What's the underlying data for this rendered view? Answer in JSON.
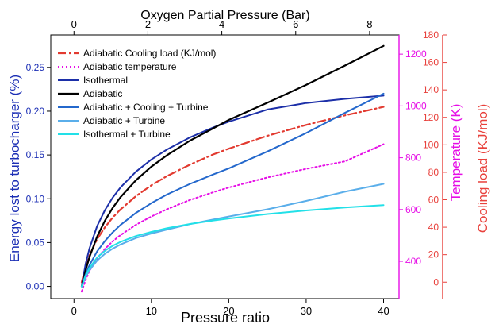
{
  "chart_data": {
    "type": "line",
    "xlabel": "Pressure ratio",
    "ylabel": "Energy lost to turbocharger (%)",
    "x_ticks": [
      "0",
      "10",
      "20",
      "30",
      "40"
    ],
    "y_ticks": [
      "0.00",
      "0.05",
      "0.10",
      "0.15",
      "0.20",
      "0.25"
    ],
    "xlim": [
      -3,
      42
    ],
    "ylim": [
      -0.014,
      0.287
    ],
    "top_axis": {
      "label": "Oxygen Partial Pressure (Bar)",
      "ticks": [
        "0",
        "2",
        "4",
        "6",
        "8"
      ],
      "tick_values_in_pressure_ratio": [
        0.0,
        9.55,
        19.1,
        28.65,
        38.2
      ]
    },
    "right_axis_temperature": {
      "label": "Temperature (K)",
      "ticks": [
        "400",
        "600",
        "800",
        "1000",
        "1200"
      ],
      "ylim": [
        256,
        1274
      ],
      "color": "#e60ee6"
    },
    "right_axis_cooling": {
      "label": "Cooling load (KJ/mol)",
      "ticks": [
        "0",
        "20",
        "40",
        "60",
        "80",
        "100",
        "120",
        "140",
        "160",
        "180"
      ],
      "ylim": [
        -12,
        180
      ],
      "color": "#e8413c"
    },
    "left_axis_color": "#1c2fb5",
    "x_for_series": [
      1,
      1.5,
      2,
      3,
      4,
      5,
      6,
      8,
      10,
      12,
      15,
      18,
      20,
      25,
      30,
      35,
      40
    ],
    "series": [
      {
        "name": "Adiabatic Cooling load (KJ/mol)",
        "axis": "cooling",
        "color": "#e23a30",
        "dash": "10,4,2,4",
        "width": 2.2,
        "values": [
          0,
          11.2,
          19.4,
          31.3,
          40.0,
          47.0,
          52.9,
          62.6,
          70.5,
          77.2,
          85.6,
          93.0,
          97.2,
          106.6,
          114.5,
          121.4,
          127.6
        ]
      },
      {
        "name": "Adiabatic temperature",
        "axis": "temperature",
        "color": "#e60ee6",
        "dash": "2,3",
        "width": 2,
        "values": [
          283,
          329,
          363,
          412,
          448,
          477,
          501,
          541,
          573,
          601,
          637,
          667,
          685,
          724,
          757,
          786,
          852
        ]
      },
      {
        "name": "Isothermal",
        "axis": "left",
        "color": "#1c2fa8",
        "dash": "",
        "width": 2,
        "values": [
          0.0,
          0.0255,
          0.0434,
          0.069,
          0.0871,
          0.1012,
          0.1128,
          0.1309,
          0.1448,
          0.1561,
          0.1701,
          0.1815,
          0.188,
          0.2019,
          0.2093,
          0.214,
          0.2177
        ]
      },
      {
        "name": "Adiabatic",
        "axis": "left",
        "color": "#000000",
        "dash": "",
        "width": 2.2,
        "values": [
          0.0,
          0.0183,
          0.0335,
          0.057,
          0.075,
          0.0895,
          0.1017,
          0.1211,
          0.1367,
          0.1496,
          0.1664,
          0.1805,
          0.19,
          0.2097,
          0.23,
          0.252,
          0.2745
        ]
      },
      {
        "name": "Adiabatic + Cooling + Turbine",
        "axis": "left",
        "color": "#2468cc",
        "dash": "",
        "width": 2,
        "values": [
          0.0,
          0.0137,
          0.0242,
          0.04,
          0.0518,
          0.0616,
          0.07,
          0.0838,
          0.095,
          0.1048,
          0.117,
          0.1278,
          0.1346,
          0.154,
          0.175,
          0.198,
          0.22
        ]
      },
      {
        "name": "Adiabatic + Turbine",
        "axis": "left",
        "color": "#5aaeea",
        "dash": "",
        "width": 2,
        "values": [
          0.0,
          0.0108,
          0.0185,
          0.0295,
          0.0372,
          0.043,
          0.0477,
          0.0552,
          0.0603,
          0.0648,
          0.071,
          0.0764,
          0.0797,
          0.088,
          0.0975,
          0.108,
          0.117
        ]
      },
      {
        "name": "Isothermal + Turbine",
        "axis": "left",
        "color": "#22e0e8",
        "dash": "",
        "width": 2,
        "values": [
          0.0,
          0.0122,
          0.021,
          0.033,
          0.0407,
          0.0463,
          0.0507,
          0.0574,
          0.0622,
          0.0663,
          0.0712,
          0.0752,
          0.0775,
          0.0826,
          0.0866,
          0.09,
          0.0928
        ]
      }
    ],
    "legend_placement": "top-left"
  }
}
